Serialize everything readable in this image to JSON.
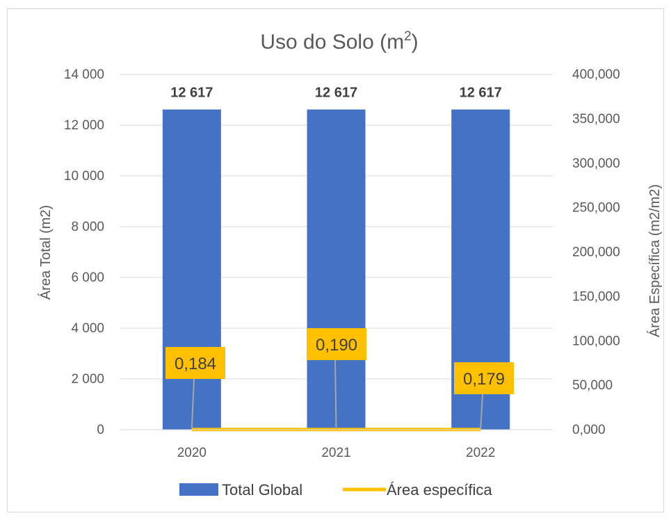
{
  "chart_data": {
    "type": "bar",
    "title": "Uso do Solo (m",
    "title_superscript": "2",
    "title_suffix": ")",
    "categories": [
      "2020",
      "2021",
      "2022"
    ],
    "ylabel": "Área Total (m2)",
    "ylabel_right": "Área Específica (m2/m2)",
    "ylim": [
      0,
      14000
    ],
    "ylim_right": [
      0,
      400
    ],
    "yticks": [
      "14 000",
      "12 000",
      "10 000",
      "8 000",
      "6 000",
      "4 000",
      "2 000",
      "0"
    ],
    "yticks_right": [
      "400,000",
      "350,000",
      "300,000",
      "250,000",
      "200,000",
      "150,000",
      "100,000",
      "50,000",
      "0,000"
    ],
    "grid": true,
    "legend_position": "bottom",
    "series": [
      {
        "name": "Total Global",
        "type": "bar",
        "axis": "left",
        "color": "#4472C4",
        "values": [
          12617,
          12617,
          12617
        ],
        "labels": [
          "12 617",
          "12 617",
          "12 617"
        ]
      },
      {
        "name": "Área específica",
        "type": "line",
        "axis": "right",
        "color": "#FFC000",
        "values": [
          0.184,
          0.19,
          0.179
        ],
        "labels": [
          "0,184",
          "0,190",
          "0,179"
        ]
      }
    ]
  }
}
